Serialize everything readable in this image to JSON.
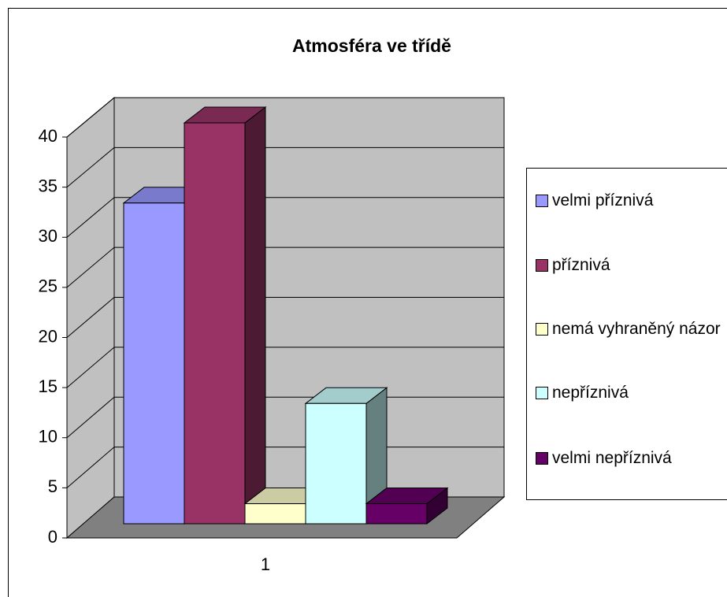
{
  "chart_data": {
    "type": "bar3d",
    "title": "Atmosféra ve třídě",
    "categories": [
      "1"
    ],
    "series": [
      {
        "name": "velmi příznivá",
        "color": "#9999ff",
        "values": [
          32
        ]
      },
      {
        "name": "příznivá",
        "color": "#993366",
        "values": [
          40
        ]
      },
      {
        "name": "nemá vyhraněný názor",
        "color": "#ffffcc",
        "values": [
          2
        ]
      },
      {
        "name": "nepříznivá",
        "color": "#ccffff",
        "values": [
          12
        ]
      },
      {
        "name": "velmi nepříznivá",
        "color": "#660066",
        "values": [
          2
        ]
      }
    ],
    "ylim": [
      0,
      40
    ],
    "yticks": [
      0,
      5,
      10,
      15,
      20,
      25,
      30,
      35,
      40
    ],
    "grid": true,
    "legend": "right"
  }
}
